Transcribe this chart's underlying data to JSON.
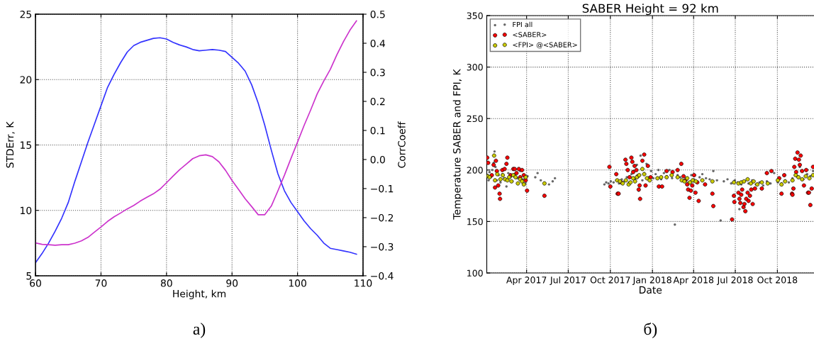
{
  "chart_data": [
    {
      "type": "line",
      "xlabel": "Height, km",
      "ylabel": "STDErr, K",
      "y2label": "CorrCoeff",
      "annotations": [
        "а)"
      ],
      "grid": true,
      "legend": false,
      "line_style": "solid",
      "marker": "none",
      "xlim": [
        60,
        110
      ],
      "xticks": [
        60,
        70,
        80,
        90,
        100,
        110
      ],
      "ylim": [
        5,
        25
      ],
      "yticks": [
        5,
        10,
        15,
        20,
        25
      ],
      "y2lim": [
        -0.4,
        0.5
      ],
      "y2ticks": [
        {
          "value": -0.4,
          "label": "−0.4"
        },
        {
          "value": -0.3,
          "label": "−0.3"
        },
        {
          "value": -0.2,
          "label": "−0.2"
        },
        {
          "value": -0.1,
          "label": "−0.1"
        },
        {
          "value": 0,
          "label": "0.0"
        },
        0.1,
        0.2,
        0.3,
        0.4,
        0.5
      ],
      "x": [
        60,
        61,
        62,
        63,
        64,
        65,
        66,
        67,
        68,
        69,
        70,
        71,
        72,
        73,
        74,
        75,
        76,
        77,
        78,
        79,
        80,
        81,
        82,
        83,
        84,
        85,
        86,
        87,
        88,
        89,
        90,
        91,
        92,
        93,
        94,
        95,
        96,
        97,
        98,
        99,
        100,
        101,
        102,
        103,
        104,
        105,
        106,
        107,
        108,
        109
      ],
      "series": [
        {
          "color": "#3333ff",
          "values": [
            6.0,
            6.7,
            7.5,
            8.4,
            9.4,
            10.6,
            12.2,
            13.7,
            15.2,
            16.6,
            18.0,
            19.4,
            20.4,
            21.3,
            22.1,
            22.6,
            22.85,
            23.0,
            23.15,
            23.2,
            23.1,
            22.85,
            22.65,
            22.5,
            22.3,
            22.2,
            22.25,
            22.3,
            22.25,
            22.15,
            21.7,
            21.25,
            20.65,
            19.6,
            18.2,
            16.5,
            14.6,
            12.8,
            11.5,
            10.6,
            9.9,
            9.2,
            8.6,
            8.1,
            7.5,
            7.1,
            7.0,
            6.9,
            6.8,
            6.65
          ]
        },
        {
          "color": "#cc33cc",
          "axis": "y2",
          "values": [
            -0.287,
            -0.292,
            -0.293,
            -0.295,
            -0.293,
            -0.293,
            -0.288,
            -0.28,
            -0.268,
            -0.25,
            -0.232,
            -0.213,
            -0.197,
            -0.184,
            -0.17,
            -0.158,
            -0.143,
            -0.13,
            -0.118,
            -0.102,
            -0.08,
            -0.057,
            -0.035,
            -0.016,
            0.003,
            0.013,
            0.016,
            0.01,
            -0.008,
            -0.037,
            -0.072,
            -0.103,
            -0.135,
            -0.162,
            -0.19,
            -0.19,
            -0.16,
            -0.108,
            -0.054,
            0.004,
            0.06,
            0.117,
            0.17,
            0.226,
            0.27,
            0.31,
            0.36,
            0.405,
            0.445,
            0.477
          ]
        }
      ]
    },
    {
      "type": "scatter",
      "title": "SABER Height = 92 km",
      "xlabel": "Date",
      "ylabel": "Temperature SABER and FPI, K",
      "annotations": [
        "б)"
      ],
      "grid": true,
      "legend": "top left",
      "marker": "circle",
      "xlim": [
        "2017-01-04",
        "2018-12-20"
      ],
      "xticks": [
        {
          "value": "2017-04-01",
          "label": "Apr 2017"
        },
        {
          "value": "2017-07-01",
          "label": "Jul 2017"
        },
        {
          "value": "2017-10-01",
          "label": "Oct 2017"
        },
        {
          "value": "2018-01-01",
          "label": "Jan 2018"
        },
        {
          "value": "2018-04-01",
          "label": "Apr 2018"
        },
        {
          "value": "2018-07-01",
          "label": "Jul 2018"
        },
        {
          "value": "2018-10-01",
          "label": "Oct 2018"
        }
      ],
      "ylim": [
        100,
        350
      ],
      "yticks": [
        100,
        150,
        200,
        250,
        300,
        350
      ],
      "series": [
        {
          "name": "FPI all",
          "color": "#666666",
          "x": [
            "2017-01-06",
            "2017-01-08",
            "2017-01-10",
            "2017-01-13",
            "2017-01-16",
            "2017-01-19",
            "2017-01-21",
            "2017-01-23",
            "2017-01-26",
            "2017-01-30",
            "2017-02-03",
            "2017-02-07",
            "2017-02-11",
            "2017-02-16",
            "2017-02-20",
            "2017-02-25",
            "2017-03-01",
            "2017-03-06",
            "2017-03-12",
            "2017-03-18",
            "2017-03-24",
            "2017-03-29",
            "2017-04-03",
            "2017-04-20",
            "2017-04-25",
            "2017-05-02",
            "2017-05-20",
            "2017-05-28",
            "2017-06-02",
            "2017-09-18",
            "2017-09-22",
            "2017-09-27",
            "2017-10-02",
            "2017-10-08",
            "2017-10-14",
            "2017-10-20",
            "2017-10-26",
            "2017-11-01",
            "2017-11-06",
            "2017-11-11",
            "2017-11-16",
            "2017-11-20",
            "2017-11-24",
            "2017-11-28",
            "2017-12-02",
            "2017-12-06",
            "2017-12-10",
            "2017-12-14",
            "2017-12-19",
            "2017-12-24",
            "2017-12-29",
            "2018-01-03",
            "2018-01-08",
            "2018-01-14",
            "2018-01-20",
            "2018-01-26",
            "2018-02-01",
            "2018-02-07",
            "2018-02-13",
            "2018-02-19",
            "2018-02-25",
            "2018-03-03",
            "2018-03-09",
            "2018-03-15",
            "2018-03-21",
            "2018-03-27",
            "2018-04-02",
            "2018-04-08",
            "2018-04-14",
            "2018-04-20",
            "2018-04-28",
            "2018-05-06",
            "2018-05-14",
            "2018-05-22",
            "2018-05-30",
            "2018-06-06",
            "2018-06-14",
            "2018-06-22",
            "2018-06-30",
            "2018-07-06",
            "2018-07-10",
            "2018-07-14",
            "2018-07-22",
            "2018-07-30",
            "2018-08-07",
            "2018-08-15",
            "2018-08-23",
            "2018-08-31",
            "2018-09-08",
            "2018-09-16",
            "2018-09-24",
            "2018-10-02",
            "2018-10-10",
            "2018-10-18",
            "2018-10-26",
            "2018-11-03",
            "2018-11-11",
            "2018-11-19",
            "2018-11-27",
            "2018-12-05",
            "2018-12-12",
            "2018-12-18"
          ],
          "values": [
            195,
            190,
            198,
            193,
            200,
            207,
            218,
            203,
            190,
            195,
            188,
            196,
            192,
            184,
            197,
            193,
            189,
            196,
            192,
            199,
            191,
            187,
            194,
            193,
            197,
            190,
            186,
            189,
            192,
            186,
            188,
            187,
            189,
            188,
            190,
            187,
            191,
            189,
            193,
            188,
            196,
            199,
            191,
            205,
            180,
            214,
            190,
            197,
            206,
            193,
            199,
            192,
            196,
            200,
            191,
            197,
            194,
            200,
            192,
            147,
            195,
            193,
            190,
            192,
            188,
            195,
            191,
            189,
            193,
            196,
            192,
            191,
            199,
            190,
            151,
            189,
            191,
            187,
            190,
            188,
            162,
            186,
            189,
            187,
            190,
            186,
            188,
            185,
            189,
            187,
            197,
            188,
            187,
            190,
            188,
            192,
            195,
            203,
            191,
            196,
            194,
            199
          ]
        },
        {
          "name": "<SABER>",
          "color": "#ff0000",
          "x": [
            "2017-01-05",
            "2017-01-07",
            "2017-01-15",
            "2017-01-19",
            "2017-01-22",
            "2017-01-24",
            "2017-01-26",
            "2017-01-29",
            "2017-02-01",
            "2017-02-02",
            "2017-02-07",
            "2017-02-12",
            "2017-02-16",
            "2017-02-18",
            "2017-02-25",
            "2017-03-03",
            "2017-03-06",
            "2017-03-10",
            "2017-03-15",
            "2017-03-18",
            "2017-03-22",
            "2017-03-26",
            "2017-03-30",
            "2017-04-02",
            "2017-05-10",
            "2017-09-29",
            "2017-10-01",
            "2017-10-14",
            "2017-10-17",
            "2017-10-19",
            "2017-10-25",
            "2017-11-03",
            "2017-11-05",
            "2017-11-08",
            "2017-11-12",
            "2017-11-16",
            "2017-11-18",
            "2017-11-20",
            "2017-11-23",
            "2017-11-27",
            "2017-11-30",
            "2017-12-02",
            "2017-12-04",
            "2017-12-05",
            "2017-12-10",
            "2017-12-14",
            "2017-12-17",
            "2017-12-22",
            "2017-12-28",
            "2018-01-15",
            "2018-01-22",
            "2018-02-01",
            "2018-02-14",
            "2018-02-25",
            "2018-03-05",
            "2018-03-10",
            "2018-03-14",
            "2018-03-18",
            "2018-03-20",
            "2018-03-23",
            "2018-03-26",
            "2018-03-29",
            "2018-04-02",
            "2018-04-05",
            "2018-04-09",
            "2018-04-12",
            "2018-04-26",
            "2018-05-12",
            "2018-05-14",
            "2018-06-24",
            "2018-06-28",
            "2018-06-29",
            "2018-07-08",
            "2018-07-10",
            "2018-07-12",
            "2018-07-14",
            "2018-07-16",
            "2018-07-19",
            "2018-07-21",
            "2018-07-23",
            "2018-07-25",
            "2018-07-28",
            "2018-07-30",
            "2018-08-02",
            "2018-08-05",
            "2018-08-08",
            "2018-08-13",
            "2018-08-28",
            "2018-09-08",
            "2018-09-18",
            "2018-10-05",
            "2018-10-10",
            "2018-10-16",
            "2018-11-02",
            "2018-11-03",
            "2018-11-05",
            "2018-11-07",
            "2018-11-09",
            "2018-11-11",
            "2018-11-14",
            "2018-11-17",
            "2018-11-19",
            "2018-11-21",
            "2018-11-24",
            "2018-11-28",
            "2018-12-03",
            "2018-12-07",
            "2018-12-09",
            "2018-12-12",
            "2018-12-15",
            "2018-12-18"
          ],
          "values": [
            212,
            207,
            195,
            205,
            183,
            209,
            199,
            185,
            177,
            172,
            200,
            201,
            206,
            212,
            195,
            201,
            201,
            197,
            201,
            193,
            200,
            195,
            190,
            180,
            175,
            203,
            184,
            196,
            177,
            177,
            188,
            210,
            206,
            200,
            193,
            212,
            208,
            198,
            204,
            200,
            194,
            181,
            185,
            172,
            209,
            215,
            185,
            204,
            193,
            184,
            184,
            199,
            198,
            200,
            206,
            194,
            190,
            186,
            181,
            173,
            180,
            185,
            195,
            178,
            188,
            170,
            186,
            177,
            165,
            152,
            175,
            169,
            178,
            172,
            168,
            176,
            181,
            164,
            167,
            160,
            172,
            178,
            170,
            175,
            181,
            167,
            182,
            182,
            197,
            199,
            192,
            177,
            195,
            177,
            176,
            182,
            203,
            211,
            198,
            217,
            210,
            205,
            214,
            199,
            185,
            200,
            178,
            178,
            166,
            182,
            203
          ]
        },
        {
          "name": "<FPI> @<SABER>",
          "color": "#cccc00",
          "x": [
            "2017-01-06",
            "2017-01-10",
            "2017-01-20",
            "2017-01-22",
            "2017-01-27",
            "2017-02-03",
            "2017-02-08",
            "2017-02-13",
            "2017-02-18",
            "2017-02-22",
            "2017-02-27",
            "2017-03-03",
            "2017-03-08",
            "2017-03-13",
            "2017-03-18",
            "2017-03-22",
            "2017-03-26",
            "2017-03-30",
            "2017-05-10",
            "2017-10-16",
            "2017-10-22",
            "2017-10-28",
            "2017-11-04",
            "2017-11-10",
            "2017-11-14",
            "2017-11-20",
            "2017-11-24",
            "2017-11-28",
            "2017-12-03",
            "2017-12-10",
            "2017-12-14",
            "2017-12-20",
            "2017-12-26",
            "2018-01-12",
            "2018-01-20",
            "2018-02-01",
            "2018-02-12",
            "2018-02-25",
            "2018-03-06",
            "2018-03-12",
            "2018-03-18",
            "2018-03-24",
            "2018-03-30",
            "2018-04-06",
            "2018-04-20",
            "2018-05-12",
            "2018-06-28",
            "2018-07-08",
            "2018-07-14",
            "2018-07-20",
            "2018-07-28",
            "2018-08-04",
            "2018-08-10",
            "2018-08-18",
            "2018-08-28",
            "2018-09-10",
            "2018-10-02",
            "2018-10-10",
            "2018-10-18",
            "2018-11-03",
            "2018-11-10",
            "2018-11-16",
            "2018-11-24",
            "2018-12-02",
            "2018-12-10",
            "2018-12-18"
          ],
          "values": [
            194,
            193,
            214,
            190,
            196,
            191,
            195,
            191,
            190,
            193,
            189,
            195,
            193,
            187,
            191,
            189,
            186,
            193,
            187,
            190,
            189,
            187,
            190,
            186,
            188,
            192,
            189,
            193,
            195,
            201,
            196,
            192,
            190,
            192,
            193,
            193,
            195,
            193,
            190,
            189,
            192,
            188,
            190,
            189,
            190,
            189,
            188,
            187,
            188,
            189,
            191,
            187,
            189,
            186,
            188,
            187,
            190,
            186,
            189,
            190,
            195,
            193,
            191,
            194,
            192,
            195
          ]
        }
      ]
    }
  ]
}
